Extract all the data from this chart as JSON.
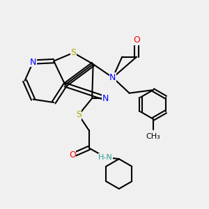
{
  "background_color": "#f0f0f0",
  "colors": {
    "C": "#000000",
    "N": "#0000FF",
    "O": "#FF0000",
    "S": "#AAAA00",
    "H_N": "#2F9E8F",
    "bond": "#000000"
  },
  "bond_width": 1.5,
  "font_size": 9
}
